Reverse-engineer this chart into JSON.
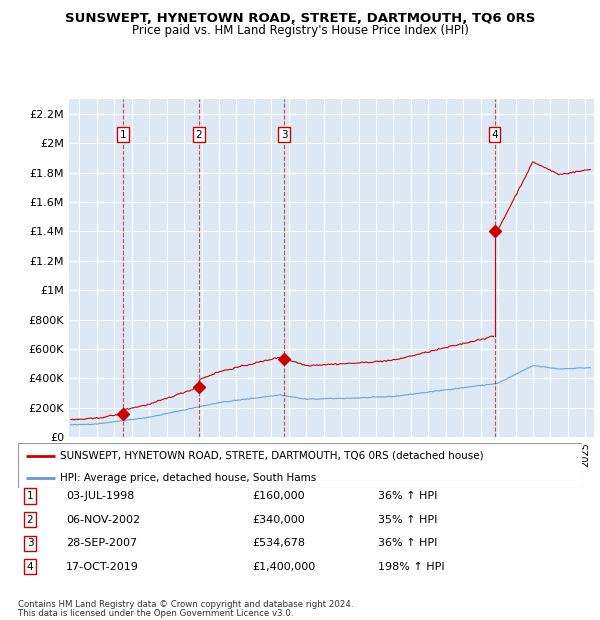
{
  "title": "SUNSWEPT, HYNETOWN ROAD, STRETE, DARTMOUTH, TQ6 0RS",
  "subtitle": "Price paid vs. HM Land Registry's House Price Index (HPI)",
  "ylabel_ticks": [
    "£0",
    "£200K",
    "£400K",
    "£600K",
    "£800K",
    "£1M",
    "£1.2M",
    "£1.4M",
    "£1.6M",
    "£1.8M",
    "£2M",
    "£2.2M"
  ],
  "ytick_values": [
    0,
    200000,
    400000,
    600000,
    800000,
    1000000,
    1200000,
    1400000,
    1600000,
    1800000,
    2000000,
    2200000
  ],
  "ymax": 2300000,
  "xmin": 1995.4,
  "xmax": 2025.5,
  "background_color": "#dce9f5",
  "plot_bg": "#dce9f5",
  "grid_color": "#ffffff",
  "sale_color": "#cc0000",
  "hpi_color": "#6699cc",
  "sale_label": "SUNSWEPT, HYNETOWN ROAD, STRETE, DARTMOUTH, TQ6 0RS (detached house)",
  "hpi_label": "HPI: Average price, detached house, South Hams",
  "transactions": [
    {
      "num": 1,
      "date": "03-JUL-1998",
      "year": 1998.5,
      "price": 160000,
      "pct": "36%",
      "dir": "↑"
    },
    {
      "num": 2,
      "date": "06-NOV-2002",
      "year": 2002.85,
      "price": 340000,
      "pct": "35%",
      "dir": "↑"
    },
    {
      "num": 3,
      "date": "28-SEP-2007",
      "year": 2007.75,
      "price": 534678,
      "pct": "36%",
      "dir": "↑"
    },
    {
      "num": 4,
      "date": "17-OCT-2019",
      "year": 2019.8,
      "price": 1400000,
      "pct": "198%",
      "dir": "↑"
    }
  ],
  "footnote1": "Contains HM Land Registry data © Crown copyright and database right 2024.",
  "footnote2": "This data is licensed under the Open Government Licence v3.0."
}
